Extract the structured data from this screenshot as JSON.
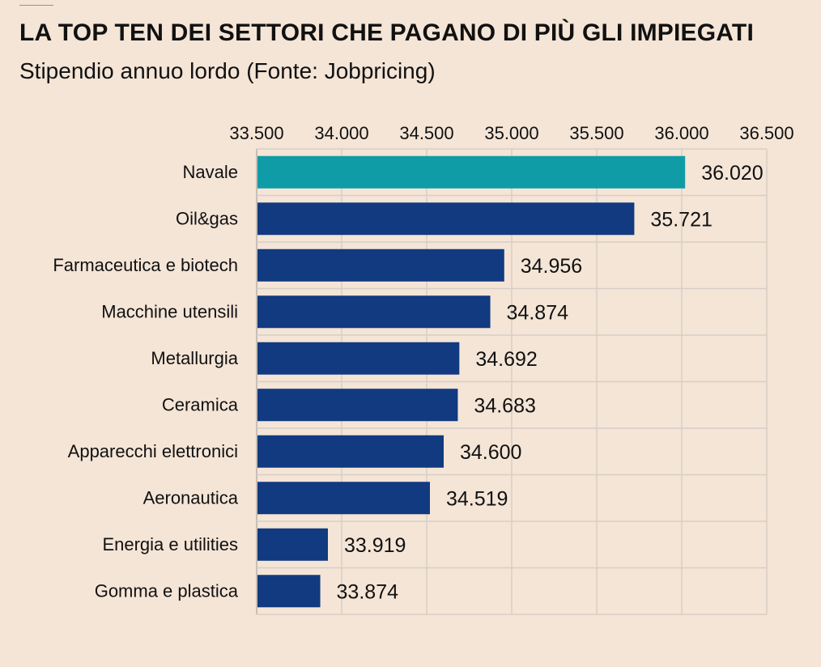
{
  "header": {
    "title": "LA TOP TEN DEI SETTORI CHE PAGANO DI PIÙ GLI IMPIEGATI",
    "subtitle": "Stipendio annuo lordo (Fonte: Jobpricing)"
  },
  "colors": {
    "background": "#f4e5d7",
    "highlight_bar": "#109ca6",
    "default_bar": "#113a80",
    "grid": "#d7cec6",
    "axis": "#b9b1aa",
    "text": "#111111"
  },
  "chart_data": {
    "type": "bar",
    "orientation": "horizontal",
    "title": "LA TOP TEN DEI SETTORI CHE PAGANO DI PIÙ GLI IMPIEGATI",
    "subtitle": "Stipendio annuo lordo (Fonte: Jobpricing)",
    "categories": [
      "Navale",
      "Oil&gas",
      "Farmaceutica e biotech",
      "Macchine utensili",
      "Metallurgia",
      "Ceramica",
      "Apparecchi elettronici",
      "Aeronautica",
      "Energia e utilities",
      "Gomma e plastica"
    ],
    "values": [
      36020,
      35721,
      34956,
      34874,
      34692,
      34683,
      34600,
      34519,
      33919,
      33874
    ],
    "value_labels": [
      "36.020",
      "35.721",
      "34.956",
      "34.874",
      "34.692",
      "34.683",
      "34.600",
      "34.519",
      "33.919",
      "33.874"
    ],
    "highlight_index": 0,
    "xlim": [
      33500,
      36500
    ],
    "x_ticks": [
      33500,
      34000,
      34500,
      35000,
      35500,
      36000,
      36500
    ],
    "x_tick_labels": [
      "33.500",
      "34.000",
      "34.500",
      "35.000",
      "35.500",
      "36.000",
      "36.500"
    ],
    "xaxis_position": "top",
    "grid": true,
    "legend": "none",
    "xlabel": "",
    "ylabel": ""
  }
}
